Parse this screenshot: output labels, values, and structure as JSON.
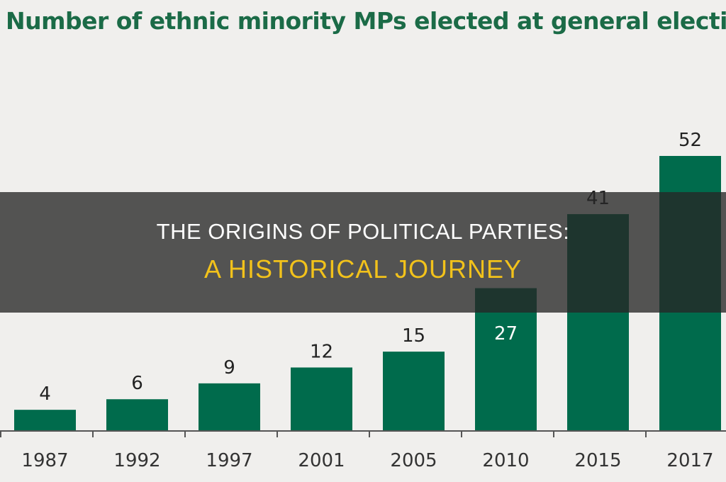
{
  "chart_data": {
    "type": "bar",
    "title": "Number of ethnic minority MPs elected at general electio",
    "categories": [
      "1987",
      "1992",
      "1997",
      "2001",
      "2005",
      "2010",
      "2015",
      "2017"
    ],
    "values": [
      4,
      6,
      9,
      12,
      15,
      27,
      41,
      52
    ],
    "data_labels": [
      "4",
      "6",
      "9",
      "12",
      "15",
      "27",
      "41",
      "52"
    ],
    "xlabel": "",
    "ylabel": "",
    "ylim": [
      0,
      52
    ],
    "grid": false,
    "bar_color": "#006b4c",
    "title_color": "#1b6b47"
  },
  "banner": {
    "line1": "THE ORIGINS OF POLITICAL PARTIES:",
    "line2": "A HISTORICAL JOURNEY",
    "line1_color": "#ffffff",
    "line2_color": "#f2c21b"
  }
}
